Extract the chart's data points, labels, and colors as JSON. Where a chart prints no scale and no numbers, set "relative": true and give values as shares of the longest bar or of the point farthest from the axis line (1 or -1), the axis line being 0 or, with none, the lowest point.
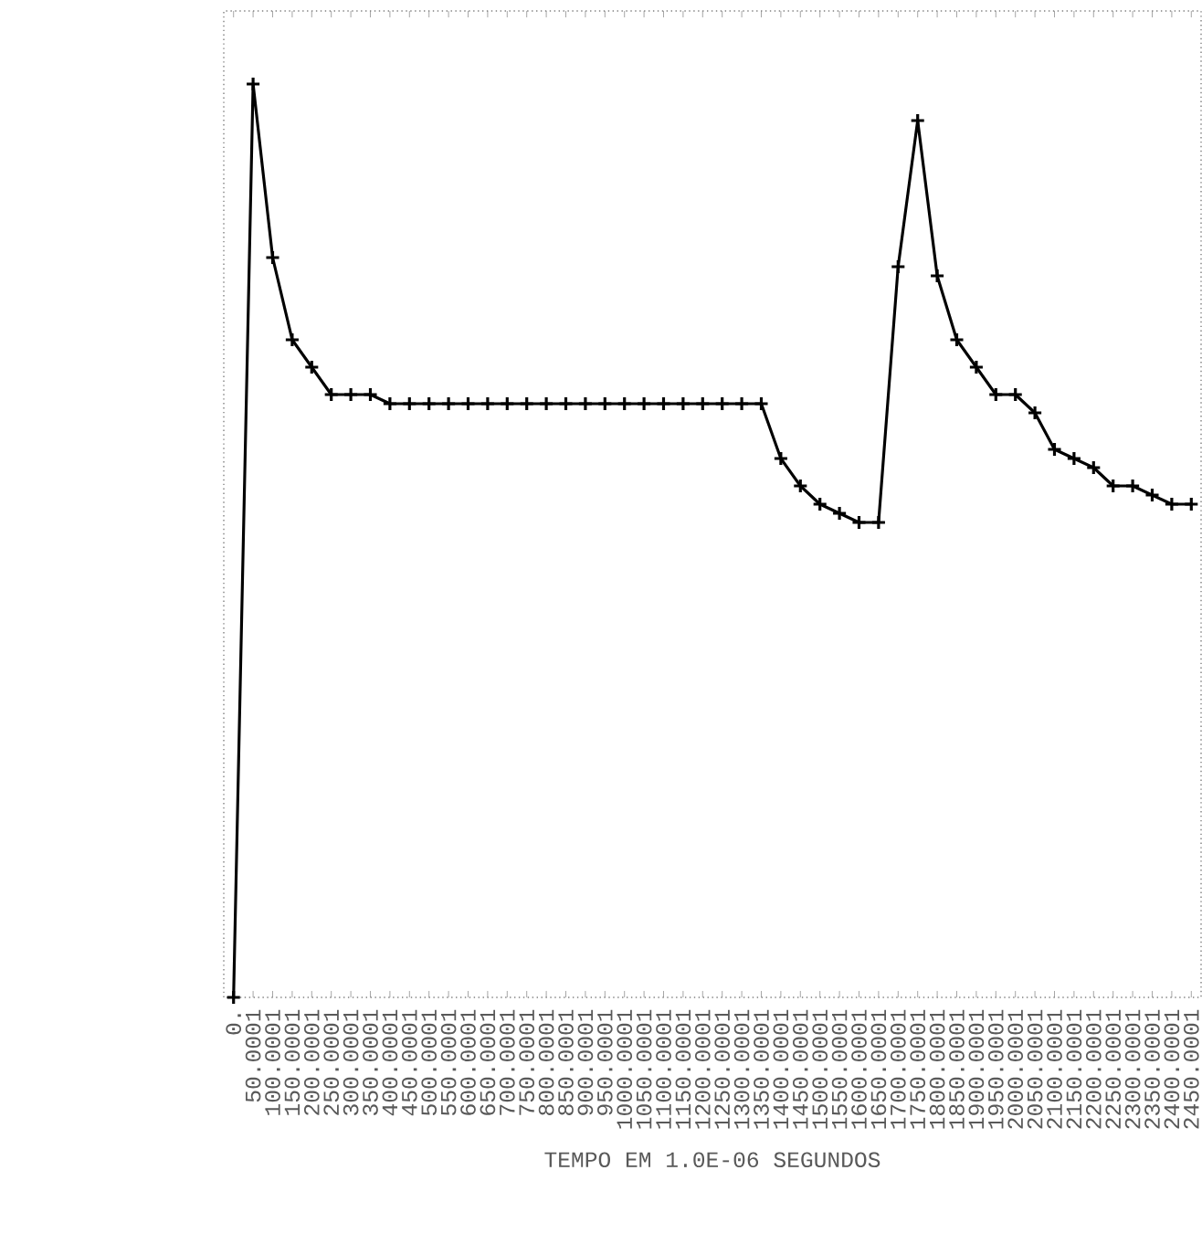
{
  "chart_data": {
    "type": "line",
    "relative": true,
    "xlabel": "TEMPO EM 1.0E-06 SEGUNDOS",
    "marker": "cross",
    "color": "#000000",
    "categories": [
      "0.",
      "50.0001",
      "100.0001",
      "150.0001",
      "200.0001",
      "250.0001",
      "300.0001",
      "350.0001",
      "400.0001",
      "450.0001",
      "500.0001",
      "550.0001",
      "600.0001",
      "650.0001",
      "700.0001",
      "750.0001",
      "800.0001",
      "850.0001",
      "900.0001",
      "950.0001",
      "1000.0001",
      "1050.0001",
      "1100.0001",
      "1150.0001",
      "1200.0001",
      "1250.0001",
      "1300.0001",
      "1350.0001",
      "1400.0001",
      "1450.0001",
      "1500.0001",
      "1550.0001",
      "1600.0001",
      "1650.0001",
      "1700.0001",
      "1750.0001",
      "1800.0001",
      "1850.0001",
      "1900.0001",
      "1950.0001",
      "2000.0001",
      "2050.0001",
      "2100.0001",
      "2150.0001",
      "2200.0001",
      "2250.0001",
      "2300.0001",
      "2350.0001",
      "2400.0001",
      "2450.0001"
    ],
    "values": [
      0,
      1.0,
      0.81,
      0.72,
      0.69,
      0.66,
      0.66,
      0.66,
      0.65,
      0.65,
      0.65,
      0.65,
      0.65,
      0.65,
      0.65,
      0.65,
      0.65,
      0.65,
      0.65,
      0.65,
      0.65,
      0.65,
      0.65,
      0.65,
      0.65,
      0.65,
      0.65,
      0.65,
      0.59,
      0.56,
      0.54,
      0.53,
      0.52,
      0.52,
      0.8,
      0.96,
      0.79,
      0.72,
      0.69,
      0.66,
      0.66,
      0.64,
      0.6,
      0.59,
      0.58,
      0.56,
      0.56,
      0.55,
      0.54,
      0.54
    ]
  }
}
